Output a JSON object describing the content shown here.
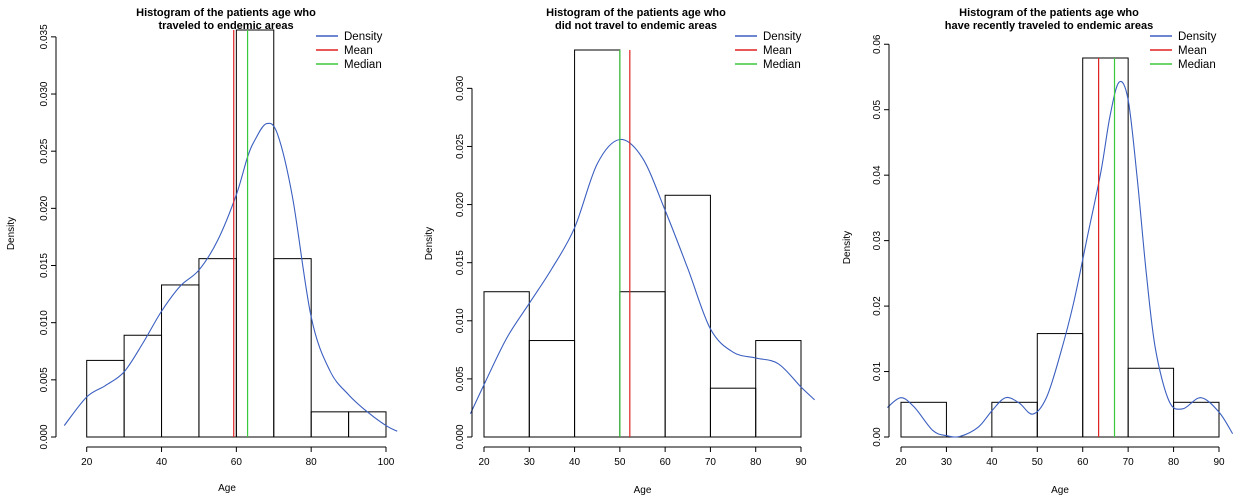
{
  "chart_data": [
    {
      "type": "bar",
      "title": "Histogram of the patients age who\ntraveled to endemic areas",
      "xlabel": "Age",
      "ylabel": "Density",
      "xlim": [
        20,
        103
      ],
      "ylim": [
        0,
        0.036
      ],
      "x_ticks": [
        20,
        40,
        60,
        80,
        100
      ],
      "y_ticks": [
        0.0,
        0.005,
        0.01,
        0.015,
        0.02,
        0.025,
        0.03,
        0.035
      ],
      "y_tick_labels": [
        "0.000",
        "0.005",
        "0.010",
        "0.015",
        "0.020",
        "0.025",
        "0.030",
        "0.035"
      ],
      "bin_edges": [
        20,
        30,
        40,
        50,
        60,
        70,
        80,
        90,
        100
      ],
      "values": [
        0.0067,
        0.0089,
        0.0133,
        0.0156,
        0.0356,
        0.0156,
        0.0022,
        0.0022
      ],
      "mean": 59.3,
      "median": 63.0,
      "density": {
        "x": [
          14,
          20,
          25,
          30,
          35,
          40,
          45,
          50,
          55,
          60,
          63,
          65,
          68,
          71,
          75,
          80,
          85,
          90,
          95,
          100,
          103
        ],
        "y": [
          0.001,
          0.0035,
          0.0045,
          0.0057,
          0.0082,
          0.011,
          0.0132,
          0.0146,
          0.0172,
          0.0212,
          0.0245,
          0.026,
          0.0274,
          0.0265,
          0.021,
          0.0105,
          0.0058,
          0.0037,
          0.0022,
          0.001,
          0.0005
        ]
      },
      "legend": [
        "Density",
        "Mean",
        "Median"
      ],
      "legend_position": "top-right",
      "colors": {
        "bars": "#000000",
        "density": "#3b5fc0",
        "mean": "#e02020",
        "median": "#3cc83c"
      }
    },
    {
      "type": "bar",
      "title": "Histogram of the patients age who\ndid not travel to endemic areas",
      "xlabel": "Age",
      "ylabel": "Density",
      "xlim": [
        20,
        90
      ],
      "ylim": [
        0,
        0.034
      ],
      "x_ticks": [
        20,
        30,
        40,
        50,
        60,
        70,
        80,
        90
      ],
      "y_ticks": [
        0.0,
        0.005,
        0.01,
        0.015,
        0.02,
        0.025,
        0.03
      ],
      "y_tick_labels": [
        "0.000",
        "0.005",
        "0.010",
        "0.015",
        "0.020",
        "0.025",
        "0.030"
      ],
      "bin_edges": [
        20,
        30,
        40,
        50,
        60,
        70,
        80,
        90
      ],
      "values": [
        0.0125,
        0.0083,
        0.0333,
        0.0125,
        0.0208,
        0.0042,
        0.0083
      ],
      "mean": 52.2,
      "median": 50.0,
      "density": {
        "x": [
          17,
          20,
          25,
          30,
          35,
          40,
          45,
          50,
          55,
          60,
          65,
          70,
          75,
          80,
          85,
          90,
          93
        ],
        "y": [
          0.002,
          0.0045,
          0.0085,
          0.0115,
          0.0145,
          0.018,
          0.0235,
          0.0256,
          0.024,
          0.0195,
          0.0145,
          0.0093,
          0.0073,
          0.0068,
          0.0063,
          0.0043,
          0.0032
        ]
      },
      "legend": [
        "Density",
        "Mean",
        "Median"
      ],
      "legend_position": "top-right",
      "colors": {
        "bars": "#000000",
        "density": "#3b5fc0",
        "mean": "#e02020",
        "median": "#3cc83c"
      }
    },
    {
      "type": "bar",
      "title": "Histogram of the patients age who\nhave recently traveled to endemic areas",
      "xlabel": "Age",
      "ylabel": "Density",
      "xlim": [
        20,
        90
      ],
      "ylim": [
        0,
        0.06
      ],
      "x_ticks": [
        20,
        30,
        40,
        50,
        60,
        70,
        80,
        90
      ],
      "y_ticks": [
        0.0,
        0.01,
        0.02,
        0.03,
        0.04,
        0.05,
        0.06
      ],
      "y_tick_labels": [
        "0.00",
        "0.01",
        "0.02",
        "0.03",
        "0.04",
        "0.05",
        "0.06"
      ],
      "bin_edges": [
        20,
        30,
        40,
        50,
        60,
        70,
        80,
        90
      ],
      "values": [
        0.0053,
        0.0,
        0.0053,
        0.0158,
        0.0579,
        0.0105,
        0.0053
      ],
      "mean": 63.5,
      "median": 67.0,
      "density": {
        "x": [
          17,
          20,
          23,
          27,
          30,
          33,
          37,
          40,
          43,
          46,
          49,
          52,
          55,
          58,
          61,
          64,
          66,
          68,
          70,
          72,
          74,
          76,
          79,
          82,
          86,
          90,
          93
        ],
        "y": [
          0.0045,
          0.006,
          0.0045,
          0.001,
          0.0002,
          0.0001,
          0.0015,
          0.004,
          0.006,
          0.0052,
          0.0035,
          0.006,
          0.0125,
          0.0205,
          0.0305,
          0.0405,
          0.049,
          0.0542,
          0.0515,
          0.0395,
          0.025,
          0.0135,
          0.0055,
          0.0043,
          0.006,
          0.0038,
          0.0005
        ]
      },
      "legend": [
        "Density",
        "Mean",
        "Median"
      ],
      "legend_position": "top-right",
      "colors": {
        "bars": "#000000",
        "density": "#3b5fc0",
        "mean": "#e02020",
        "median": "#3cc83c"
      }
    }
  ]
}
